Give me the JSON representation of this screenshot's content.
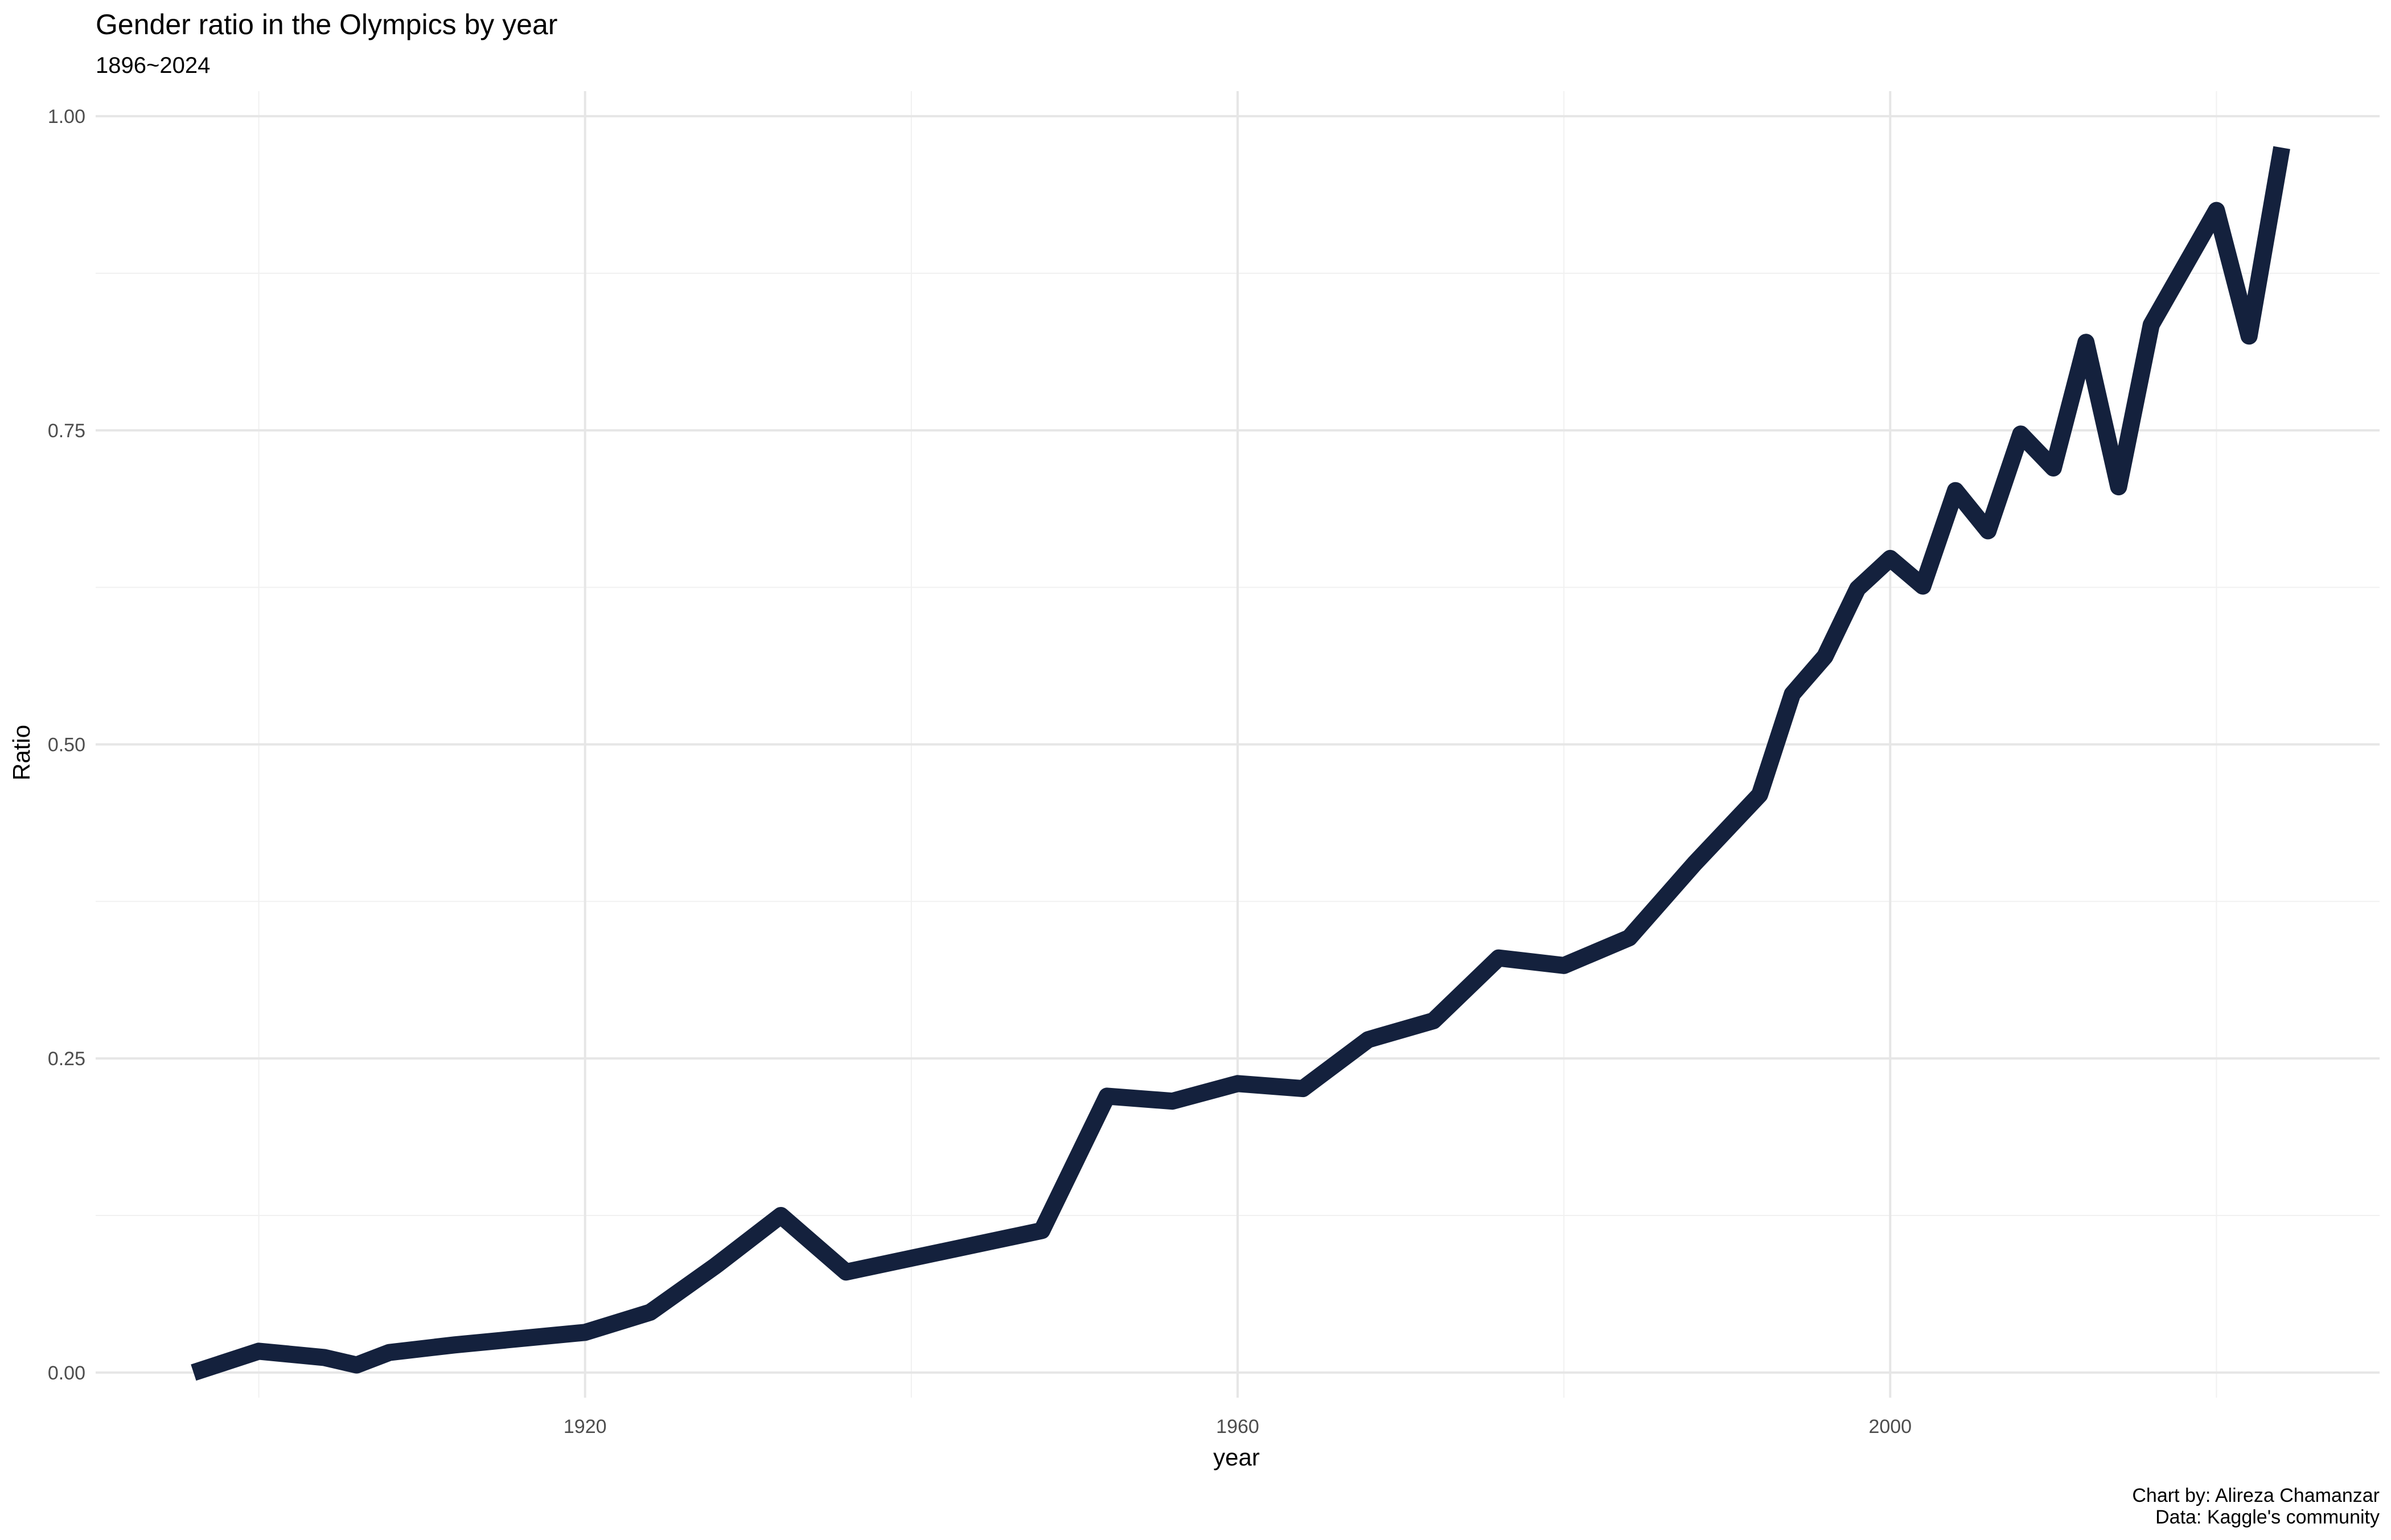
{
  "chart_data": {
    "type": "line",
    "title": "Gender ratio in the Olympics by year",
    "subtitle": "1896~2024",
    "xlabel": "year",
    "ylabel": "Ratio",
    "caption": [
      "Chart by: Alireza Chamanzar",
      "Data: Kaggle's community"
    ],
    "xlim": [
      1890,
      2030
    ],
    "ylim": [
      -0.02,
      1.02
    ],
    "x_ticks": [
      1920,
      1960,
      2000
    ],
    "y_ticks": [
      0,
      0.25,
      0.5,
      0.75,
      1.0
    ],
    "y_tick_labels": [
      "0.00",
      "0.25",
      "0.50",
      "0.75",
      "1.00"
    ],
    "grid": true,
    "legend": "none",
    "line_color": "#14213d",
    "x": [
      1896,
      1900,
      1904,
      1906,
      1908,
      1912,
      1920,
      1924,
      1928,
      1932,
      1936,
      1948,
      1952,
      1956,
      1960,
      1964,
      1968,
      1972,
      1976,
      1980,
      1984,
      1988,
      1992,
      1994,
      1996,
      1998,
      2000,
      2002,
      2004,
      2006,
      2008,
      2010,
      2012,
      2014,
      2016,
      2020,
      2022,
      2024
    ],
    "values": [
      0.0,
      0.017,
      0.012,
      0.006,
      0.016,
      0.022,
      0.032,
      0.048,
      0.085,
      0.125,
      0.08,
      0.113,
      0.22,
      0.216,
      0.23,
      0.226,
      0.265,
      0.28,
      0.33,
      0.324,
      0.346,
      0.405,
      0.46,
      0.54,
      0.57,
      0.624,
      0.648,
      0.626,
      0.702,
      0.67,
      0.747,
      0.72,
      0.82,
      0.705,
      0.834,
      0.925,
      0.825,
      0.975
    ]
  }
}
